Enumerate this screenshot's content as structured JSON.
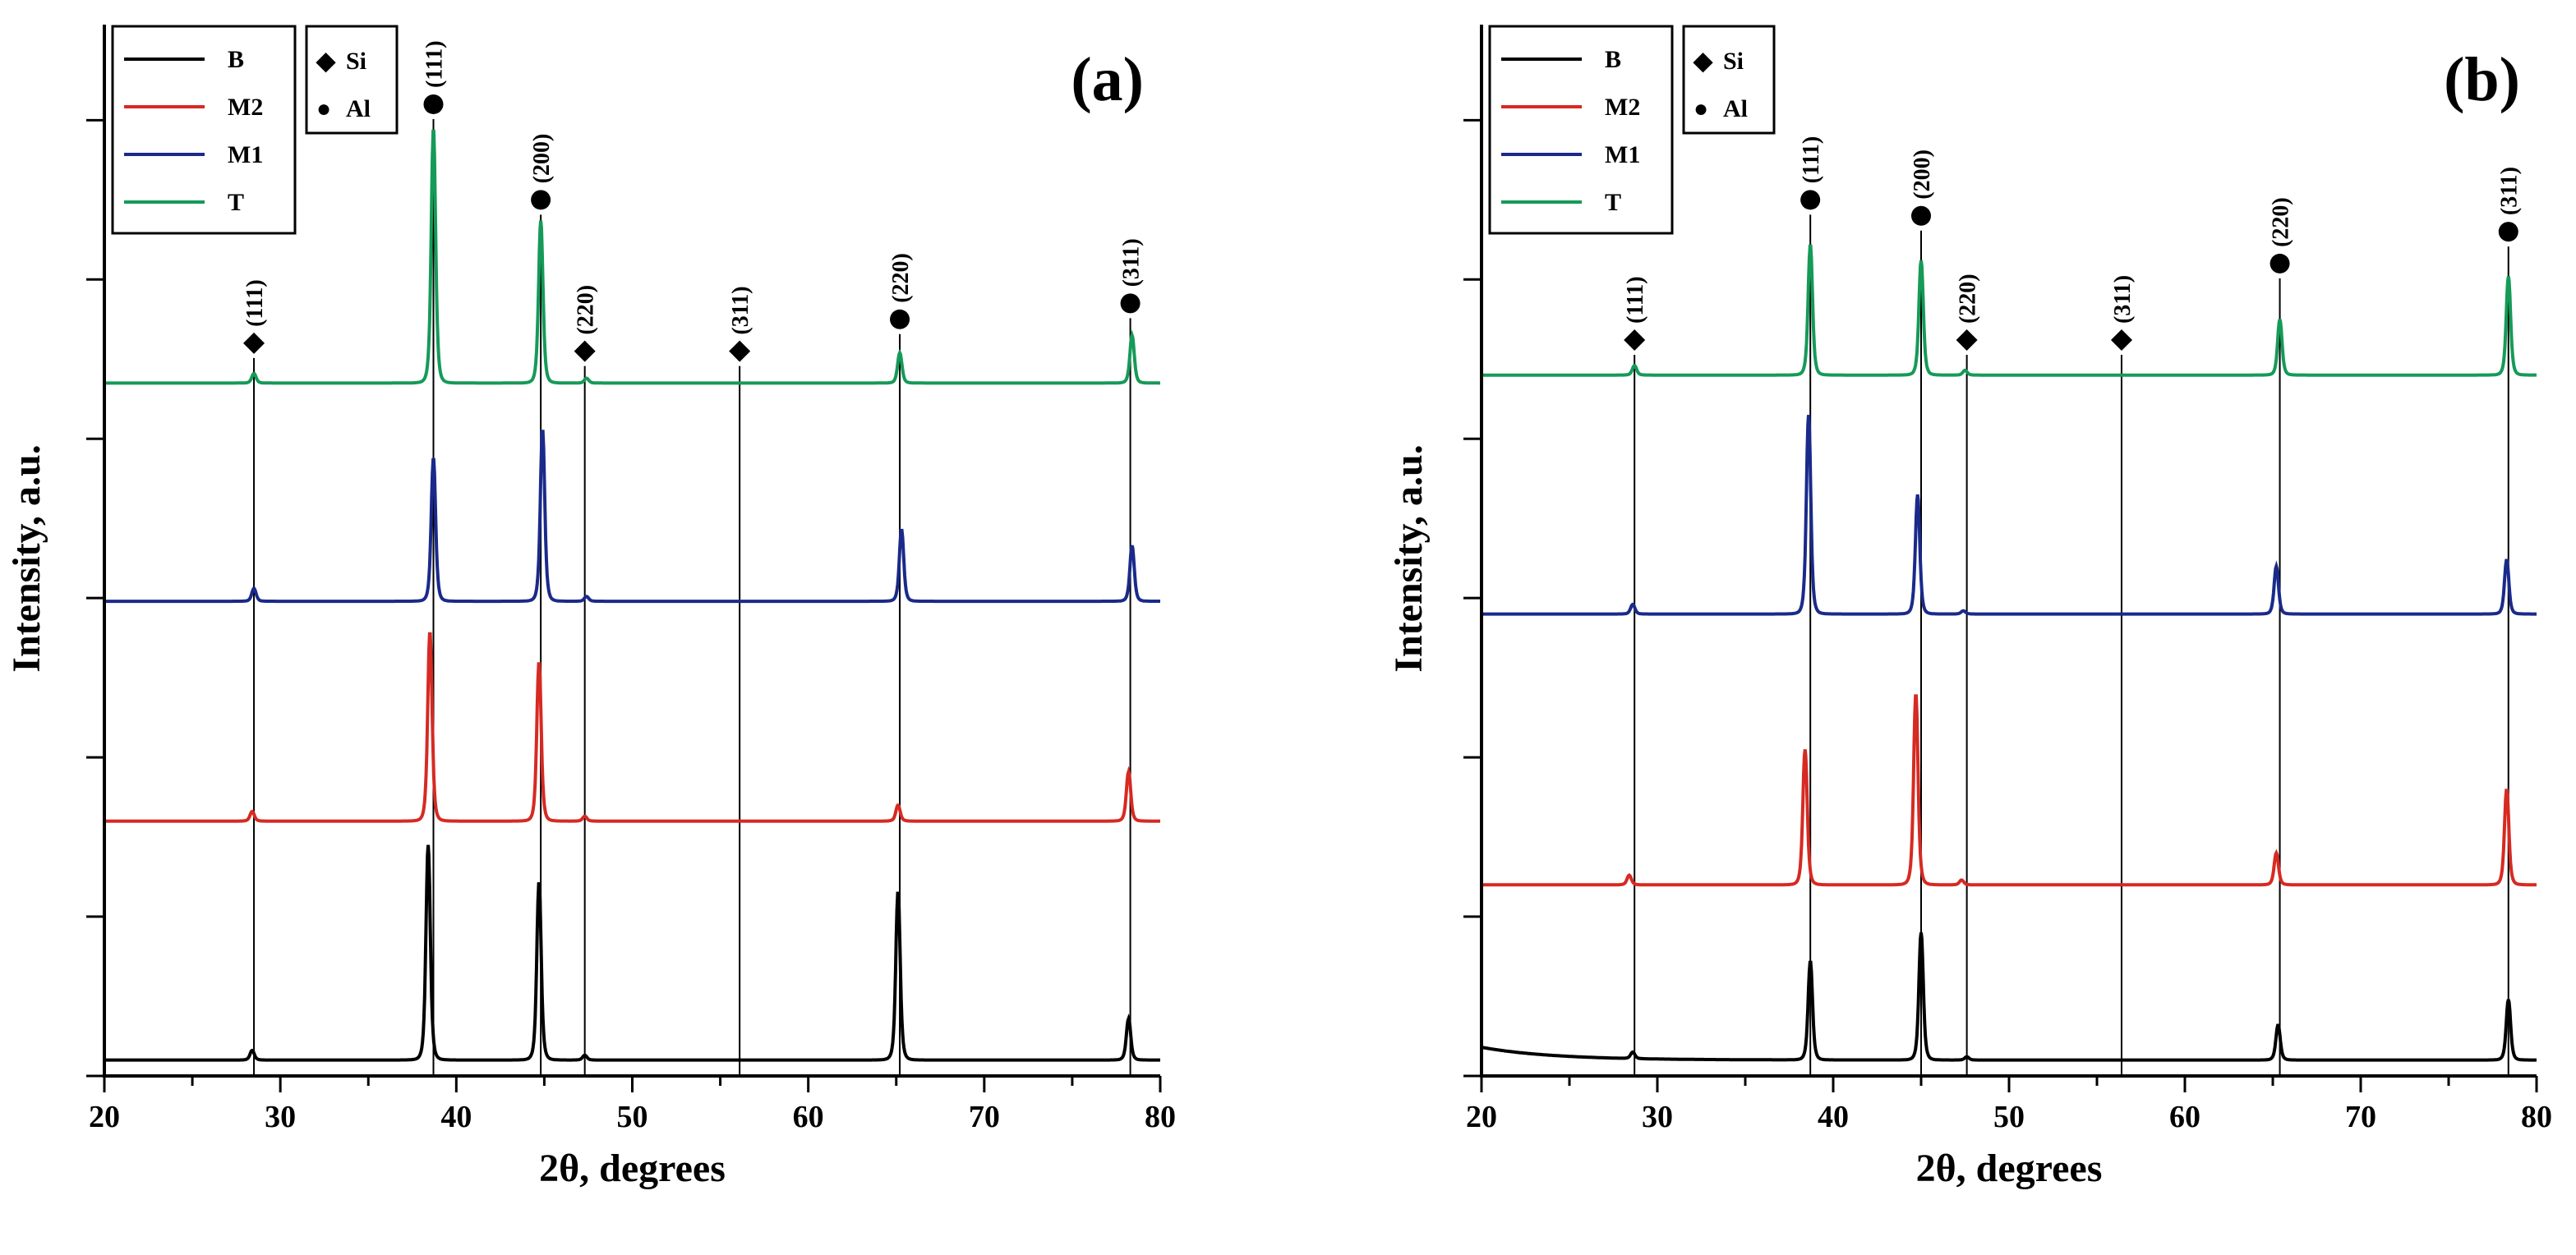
{
  "chart_data": [
    {
      "type": "line",
      "panel_label": "(a)",
      "xlabel": "2θ, degrees",
      "ylabel": "Intensity, a.u.",
      "xlim": [
        20,
        80
      ],
      "xticks": [
        20,
        30,
        40,
        50,
        60,
        70,
        80
      ],
      "ylim": [
        0,
        6.6
      ],
      "yticks": [
        0,
        1,
        2,
        3,
        4,
        5,
        6
      ],
      "series": [
        {
          "name": "B",
          "color": "#000000",
          "baseline": 0.1,
          "peaks": [
            {
              "x": 28.4,
              "h": 0.06
            },
            {
              "x": 38.4,
              "h": 1.35
            },
            {
              "x": 44.7,
              "h": 1.12
            },
            {
              "x": 47.3,
              "h": 0.03
            },
            {
              "x": 65.1,
              "h": 1.06
            },
            {
              "x": 78.2,
              "h": 0.26
            }
          ]
        },
        {
          "name": "M2",
          "color": "#d62a22",
          "baseline": 1.6,
          "peaks": [
            {
              "x": 28.4,
              "h": 0.06
            },
            {
              "x": 38.5,
              "h": 1.19
            },
            {
              "x": 44.7,
              "h": 1.0
            },
            {
              "x": 47.3,
              "h": 0.03
            },
            {
              "x": 65.1,
              "h": 0.1
            },
            {
              "x": 78.2,
              "h": 0.31
            }
          ]
        },
        {
          "name": "M1",
          "color": "#1a2a8a",
          "baseline": 2.98,
          "peaks": [
            {
              "x": 28.5,
              "h": 0.08
            },
            {
              "x": 38.7,
              "h": 0.9
            },
            {
              "x": 44.9,
              "h": 1.08
            },
            {
              "x": 47.4,
              "h": 0.03
            },
            {
              "x": 65.3,
              "h": 0.45
            },
            {
              "x": 78.4,
              "h": 0.35
            }
          ]
        },
        {
          "name": "T",
          "color": "#169a58",
          "baseline": 4.35,
          "peaks": [
            {
              "x": 28.5,
              "h": 0.06
            },
            {
              "x": 38.7,
              "h": 1.6
            },
            {
              "x": 44.8,
              "h": 1.02
            },
            {
              "x": 47.4,
              "h": 0.03
            },
            {
              "x": 65.2,
              "h": 0.19
            },
            {
              "x": 78.4,
              "h": 0.3
            }
          ]
        }
      ],
      "reference_lines": [
        {
          "x": 28.5,
          "phase": "Si",
          "label": "(111)",
          "marker_y": 4.6
        },
        {
          "x": 38.7,
          "phase": "Al",
          "label": "(111)",
          "marker_y": 6.1
        },
        {
          "x": 44.8,
          "phase": "Al",
          "label": "(200)",
          "marker_y": 5.5
        },
        {
          "x": 47.3,
          "phase": "Si",
          "label": "(220)",
          "marker_y": 4.55
        },
        {
          "x": 56.1,
          "phase": "Si",
          "label": "(311)",
          "marker_y": 4.55
        },
        {
          "x": 65.2,
          "phase": "Al",
          "label": "(220)",
          "marker_y": 4.75
        },
        {
          "x": 78.3,
          "phase": "Al",
          "label": "(311)",
          "marker_y": 4.85
        }
      ],
      "phase_legend": [
        {
          "symbol": "◆",
          "label": "Si"
        },
        {
          "symbol": "●",
          "label": "Al"
        }
      ]
    },
    {
      "type": "line",
      "panel_label": "(b)",
      "xlabel": "2θ, degrees",
      "ylabel": "Intensity, a.u.",
      "xlim": [
        20,
        80
      ],
      "xticks": [
        20,
        30,
        40,
        50,
        60,
        70,
        80
      ],
      "ylim": [
        0,
        6.6
      ],
      "yticks": [
        0,
        1,
        2,
        3,
        4,
        5,
        6
      ],
      "series": [
        {
          "name": "B",
          "color": "#000000",
          "baseline": 0.1,
          "peaks": [
            {
              "x": 28.6,
              "h": 0.04
            },
            {
              "x": 38.7,
              "h": 0.62
            },
            {
              "x": 45.0,
              "h": 0.8
            },
            {
              "x": 47.6,
              "h": 0.02
            },
            {
              "x": 65.3,
              "h": 0.22
            },
            {
              "x": 78.4,
              "h": 0.38
            }
          ]
        },
        {
          "name": "M2",
          "color": "#d62a22",
          "baseline": 1.2,
          "peaks": [
            {
              "x": 28.4,
              "h": 0.06
            },
            {
              "x": 38.4,
              "h": 0.85
            },
            {
              "x": 44.7,
              "h": 1.2
            },
            {
              "x": 47.3,
              "h": 0.03
            },
            {
              "x": 65.2,
              "h": 0.2
            },
            {
              "x": 78.3,
              "h": 0.6
            }
          ]
        },
        {
          "name": "M1",
          "color": "#1a2a8a",
          "baseline": 2.9,
          "peaks": [
            {
              "x": 28.6,
              "h": 0.06
            },
            {
              "x": 38.6,
              "h": 1.25
            },
            {
              "x": 44.8,
              "h": 0.75
            },
            {
              "x": 47.4,
              "h": 0.02
            },
            {
              "x": 65.2,
              "h": 0.3
            },
            {
              "x": 78.3,
              "h": 0.34
            }
          ]
        },
        {
          "name": "T",
          "color": "#169a58",
          "baseline": 4.4,
          "peaks": [
            {
              "x": 28.7,
              "h": 0.06
            },
            {
              "x": 38.7,
              "h": 0.82
            },
            {
              "x": 45.0,
              "h": 0.72
            },
            {
              "x": 47.5,
              "h": 0.03
            },
            {
              "x": 65.4,
              "h": 0.35
            },
            {
              "x": 78.4,
              "h": 0.62
            }
          ]
        }
      ],
      "reference_lines": [
        {
          "x": 28.7,
          "phase": "Si",
          "label": "(111)",
          "marker_y": 4.62
        },
        {
          "x": 38.7,
          "phase": "Al",
          "label": "(111)",
          "marker_y": 5.5
        },
        {
          "x": 45.0,
          "phase": "Al",
          "label": "(200)",
          "marker_y": 5.4
        },
        {
          "x": 47.6,
          "phase": "Si",
          "label": "(220)",
          "marker_y": 4.62
        },
        {
          "x": 56.4,
          "phase": "Si",
          "label": "(311)",
          "marker_y": 4.62
        },
        {
          "x": 65.4,
          "phase": "Al",
          "label": "(220)",
          "marker_y": 5.1
        },
        {
          "x": 78.4,
          "phase": "Al",
          "label": "(311)",
          "marker_y": 5.3
        }
      ],
      "phase_legend": [
        {
          "symbol": "◆",
          "label": "Si"
        },
        {
          "symbol": "●",
          "label": "Al"
        }
      ]
    }
  ]
}
